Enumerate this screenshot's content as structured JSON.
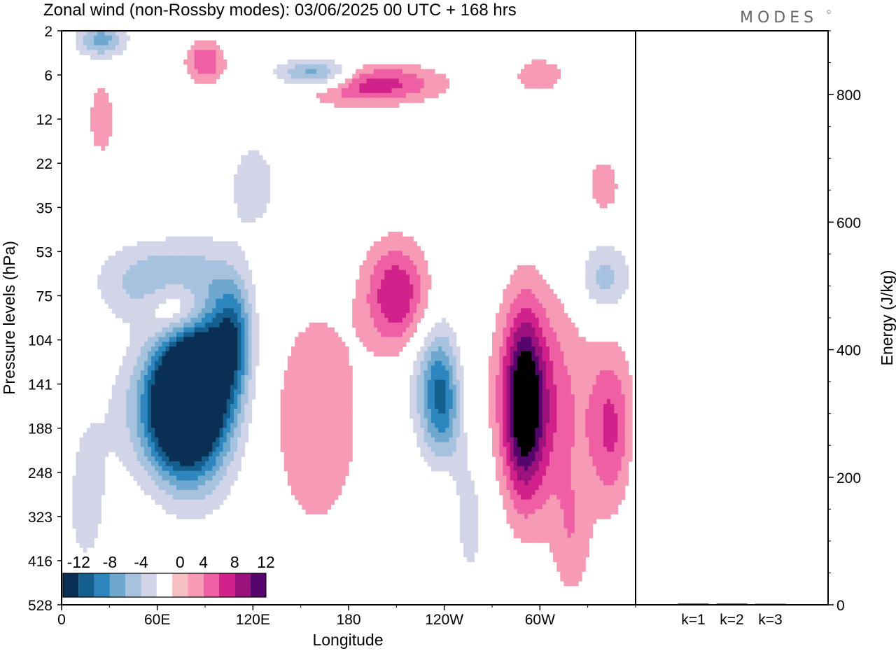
{
  "brand": "MODES",
  "brand_mark": "©",
  "colors": {
    "scale": [
      "#0a2f54",
      "#155f8e",
      "#2d86bd",
      "#6fa8cf",
      "#a6c2de",
      "#d2d5e8",
      "#ffffff",
      "#f7c1c3",
      "#f69ab6",
      "#ef5fa3",
      "#d0228a",
      "#9c127d",
      "#55056c"
    ],
    "axis": "#000000"
  },
  "chart_data": [
    {
      "type": "heatmap",
      "title": "Zonal wind (non-Rossby modes):  03/06/2025  00 UTC  + 168 hrs",
      "xlabel": "Longitude",
      "ylabel": "Pressure levels (hPa)",
      "x_ticks": [
        "0",
        "60E",
        "120E",
        "180",
        "120W",
        "60W"
      ],
      "x_tick_values": [
        0,
        60,
        120,
        180,
        240,
        300
      ],
      "xlim": [
        0,
        360
      ],
      "y_ticks": [
        "2",
        "6",
        "12",
        "22",
        "35",
        "53",
        "75",
        "104",
        "141",
        "188",
        "248",
        "323",
        "416",
        "528"
      ],
      "colorbar": {
        "labels": [
          "-12",
          "-8",
          "-4",
          "0",
          "4",
          "8",
          "12"
        ],
        "levels": [
          -14,
          -12,
          -10,
          -8,
          -6,
          -4,
          -2,
          2,
          4,
          6,
          8,
          10,
          12,
          14
        ],
        "placement": "bottom-left"
      },
      "features": [
        {
          "lon": 90,
          "level": 7.9,
          "value": -14,
          "rx": 20,
          "ry": 2.0,
          "rot": -35
        },
        {
          "lon": 73,
          "level": 8.4,
          "value": -11,
          "rx": 18,
          "ry": 1.6,
          "rot": -30
        },
        {
          "lon": 68,
          "level": 8.6,
          "value": -8,
          "rx": 30,
          "ry": 1.5,
          "rot": -30
        },
        {
          "lon": 108,
          "level": 6.9,
          "value": -8,
          "rx": 12,
          "ry": 1.3,
          "rot": -35
        },
        {
          "lon": 60,
          "level": 5.7,
          "value": -6,
          "rx": 35,
          "ry": 0.9,
          "rot": -20
        },
        {
          "lon": 75,
          "level": 6.3,
          "value": 8,
          "rx": 20,
          "ry": 0.7,
          "rot": -25
        },
        {
          "lon": 210,
          "level": 6.0,
          "value": 8,
          "rx": 20,
          "ry": 1.2,
          "rot": -20
        },
        {
          "lon": 240,
          "level": 8.7,
          "value": -8,
          "rx": 10,
          "ry": 1.6,
          "rot": -50
        },
        {
          "lon": 232,
          "level": 8.0,
          "value": -6,
          "rx": 14,
          "ry": 1.4,
          "rot": -40
        },
        {
          "lon": 290,
          "level": 8.4,
          "value": 11,
          "rx": 12,
          "ry": 2.0,
          "rot": -10
        },
        {
          "lon": 300,
          "level": 8.5,
          "value": 6,
          "rx": 30,
          "ry": 2.5,
          "rot": 0
        },
        {
          "lon": 345,
          "level": 9.0,
          "value": 6,
          "rx": 14,
          "ry": 1.8,
          "rot": 0
        },
        {
          "lon": 160,
          "level": 8.8,
          "value": 4,
          "rx": 28,
          "ry": 2.6,
          "rot": 10
        },
        {
          "lon": 160,
          "level": 1.0,
          "value": -10,
          "rx": 25,
          "ry": 0.35,
          "rot": -12
        },
        {
          "lon": 190,
          "level": 1.2,
          "value": 8,
          "rx": 45,
          "ry": 0.45,
          "rot": -10
        },
        {
          "lon": 90,
          "level": 0.7,
          "value": 6,
          "rx": 12,
          "ry": 0.5,
          "rot": -20
        },
        {
          "lon": 25,
          "level": 0.2,
          "value": -7,
          "rx": 15,
          "ry": 0.4,
          "rot": 0
        },
        {
          "lon": 120,
          "level": 3.5,
          "value": -3,
          "rx": 18,
          "ry": 1.2,
          "rot": -15
        },
        {
          "lon": 340,
          "level": 5.6,
          "value": -5,
          "rx": 16,
          "ry": 0.8,
          "rot": -30
        },
        {
          "lon": 15,
          "level": 10.5,
          "value": -3,
          "rx": 15,
          "ry": 2.0,
          "rot": 0
        },
        {
          "lon": 255,
          "level": 11.0,
          "value": -3,
          "rx": 15,
          "ry": 1.8,
          "rot": 10
        },
        {
          "lon": 240,
          "level": 10.5,
          "value": 4,
          "rx": 8,
          "ry": 2.0,
          "rot": 0
        },
        {
          "lon": 320,
          "level": 11.5,
          "value": 3,
          "rx": 12,
          "ry": 1.5,
          "rot": 0
        },
        {
          "lon": 25,
          "level": 2.0,
          "value": 4,
          "rx": 8,
          "ry": 0.8,
          "rot": 0
        },
        {
          "lon": 340,
          "level": 3.5,
          "value": 3,
          "rx": 12,
          "ry": 0.8,
          "rot": 0
        },
        {
          "lon": 300,
          "level": 1.0,
          "value": 3,
          "rx": 20,
          "ry": 0.5,
          "rot": 0
        }
      ]
    },
    {
      "type": "bar",
      "categories": [
        "k=1",
        "k=2",
        "k=3"
      ],
      "values": [
        2,
        2,
        1
      ],
      "ylabel": "Energy (J/kg)",
      "y_ticks": [
        "0",
        "200",
        "400",
        "600",
        "800"
      ],
      "ylim": [
        0,
        900
      ]
    }
  ]
}
